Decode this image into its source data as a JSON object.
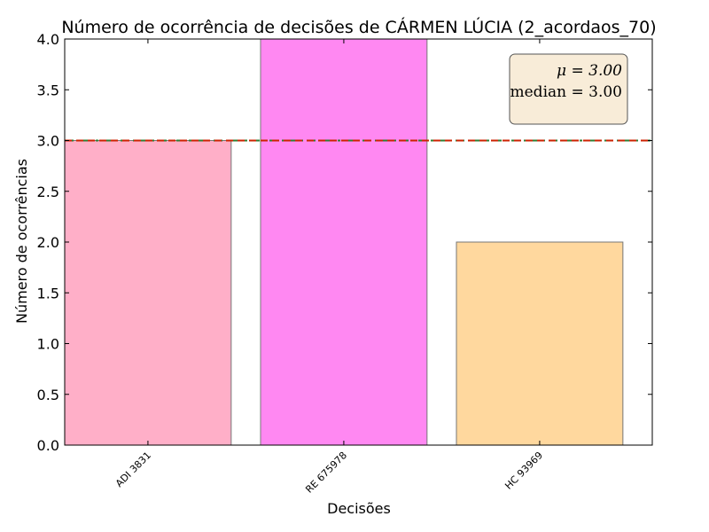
{
  "chart_data": {
    "type": "bar",
    "title": "Número de ocorrência de decisões de CÁRMEN LÚCIA (2_acordaos_70)",
    "xlabel": "Decisões",
    "ylabel": "Número de ocorrências",
    "categories": [
      "ADI 3831",
      "RE 675978",
      "HC 93969"
    ],
    "values": [
      3,
      4,
      2
    ],
    "bar_colors": [
      "#ffafc8",
      "#ff88f2",
      "#ffd89e"
    ],
    "ylim": [
      0,
      4
    ],
    "yticks": [
      "0.0",
      "0.5",
      "1.0",
      "1.5",
      "2.0",
      "2.5",
      "3.0",
      "3.5",
      "4.0"
    ],
    "grid": false,
    "reference_lines": [
      {
        "label": "mean",
        "value": 3.0,
        "color": "#2e7d32",
        "style": "dash-dot"
      },
      {
        "label": "median",
        "value": 3.0,
        "color": "#cc2200",
        "style": "dashed"
      }
    ],
    "stats_box": {
      "placement": "top-right",
      "mean_text": "μ = 3.00",
      "median_text": "median = 3.00",
      "background": "#f8ecd8"
    }
  }
}
